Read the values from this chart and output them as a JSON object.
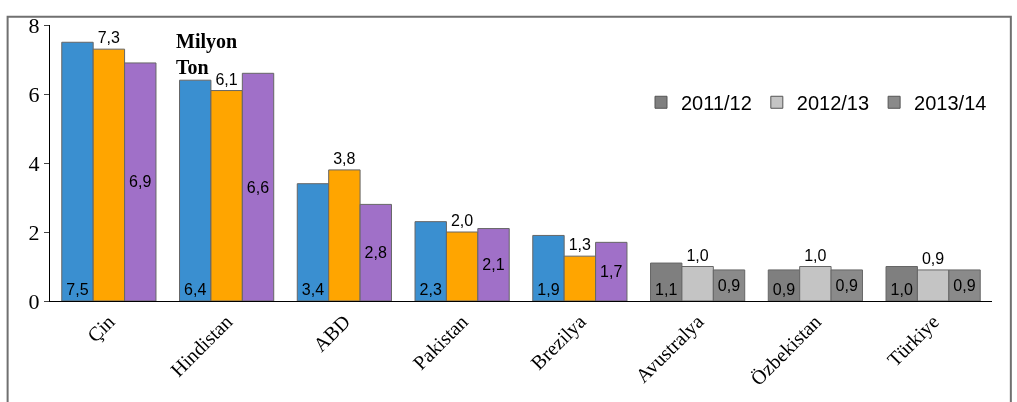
{
  "chart_data": {
    "type": "bar",
    "categories": [
      "Çin",
      "Hindistan",
      "ABD",
      "Pakistan",
      "Brezilya",
      "Avustralya",
      "Özbekistan",
      "Türkiye"
    ],
    "series": [
      {
        "name": "2011/12",
        "color": "#7f7f7f",
        "colors": [
          "#3a8fd0",
          "#3a8fd0",
          "#3a8fd0",
          "#3a8fd0",
          "#3a8fd0",
          "#7f7f7f",
          "#7f7f7f",
          "#7f7f7f"
        ],
        "values": [
          7.5,
          6.4,
          3.4,
          2.3,
          1.9,
          1.1,
          0.9,
          1.0
        ],
        "value_labels": [
          "7,5",
          "6,4",
          "3,4",
          "2,3",
          "1,9",
          "1,1",
          "0,9",
          "1,0"
        ]
      },
      {
        "name": "2012/13",
        "color": "#c4c4c4",
        "colors": [
          "#ffa500",
          "#ffa500",
          "#ffa500",
          "#ffa500",
          "#ffa500",
          "#c4c4c4",
          "#c4c4c4",
          "#c4c4c4"
        ],
        "values": [
          7.3,
          6.1,
          3.8,
          2.0,
          1.3,
          1.0,
          1.0,
          0.9
        ],
        "value_labels": [
          "7,3",
          "6,1",
          "3,8",
          "2,0",
          "1,3",
          "1,0",
          "1,0",
          "0,9"
        ]
      },
      {
        "name": "2013/14",
        "color": "#8a8a8a",
        "colors": [
          "#a070c8",
          "#a070c8",
          "#a070c8",
          "#a070c8",
          "#a070c8",
          "#8a8a8a",
          "#8a8a8a",
          "#8a8a8a"
        ],
        "values": [
          6.9,
          6.6,
          2.8,
          2.1,
          1.7,
          0.9,
          0.9,
          0.9
        ],
        "value_labels": [
          "6,9",
          "6,6",
          "2,8",
          "2,1",
          "1,7",
          "0,9",
          "0,9",
          "0,9"
        ]
      }
    ],
    "ylim": [
      0,
      8
    ],
    "yticks": [
      0,
      2,
      4,
      6,
      8
    ],
    "annotations": [
      "Milyon Ton"
    ],
    "legend": "top right"
  }
}
